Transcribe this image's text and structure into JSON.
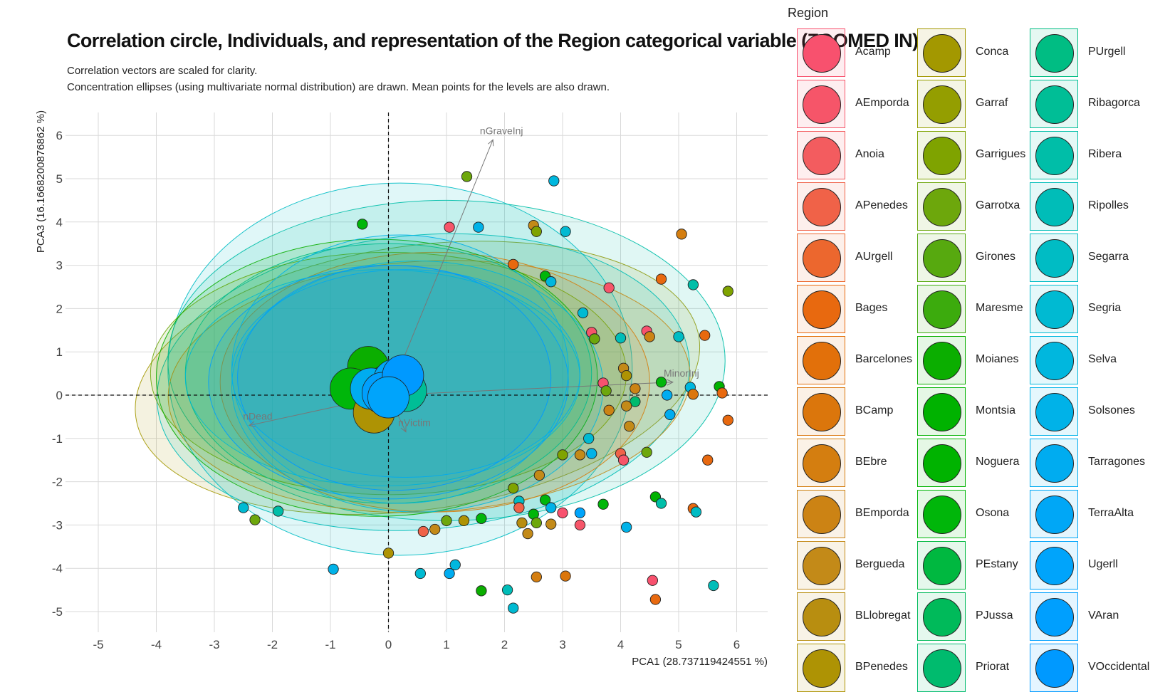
{
  "title": "Correlation circle, Individuals, and representation of the Region categorical variable (ZOOMED IN)",
  "subtitle_lines": [
    "Correlation vectors are scaled for clarity.",
    "Concentration ellipses (using multivariate normal distribution) are drawn. Mean points for the levels are also drawn."
  ],
  "chart_data": {
    "type": "scatter",
    "xlabel": "PCA1 (28.737119424551 %)",
    "ylabel": "PCA3 (16.1668200876862 %)",
    "xlim": [
      -5.5,
      6.5
    ],
    "ylim": [
      -5.6,
      6.5
    ],
    "xticks": [
      -5,
      -4,
      -3,
      -2,
      -1,
      0,
      1,
      2,
      3,
      4,
      5,
      6
    ],
    "yticks": [
      -5,
      -4,
      -3,
      -2,
      -1,
      0,
      1,
      2,
      3,
      4,
      5,
      6
    ],
    "grid": true,
    "reference_lines": {
      "x": 0,
      "y": 0,
      "style": "dashed"
    },
    "legend": {
      "title": "Region",
      "position": "right"
    },
    "regions": [
      {
        "name": "Acamp",
        "color": "#F8516E"
      },
      {
        "name": "AEmporda",
        "color": "#F65569"
      },
      {
        "name": "Anoia",
        "color": "#F35C5F"
      },
      {
        "name": "APenedes",
        "color": "#F06248"
      },
      {
        "name": "AUrgell",
        "color": "#EC672E"
      },
      {
        "name": "Bages",
        "color": "#E8690F"
      },
      {
        "name": "Barcelones",
        "color": "#E2700A"
      },
      {
        "name": "BCamp",
        "color": "#DB760C"
      },
      {
        "name": "BEbre",
        "color": "#D47E10"
      },
      {
        "name": "BEmporda",
        "color": "#CC8314"
      },
      {
        "name": "Bergueda",
        "color": "#C38A18"
      },
      {
        "name": "BLlobregat",
        "color": "#B88E10"
      },
      {
        "name": "BPenedes",
        "color": "#AE9304"
      },
      {
        "name": "Conca",
        "color": "#A39800"
      },
      {
        "name": "Garraf",
        "color": "#949E00"
      },
      {
        "name": "Garrigues",
        "color": "#7FA300"
      },
      {
        "name": "Garrotxa",
        "color": "#6DA70C"
      },
      {
        "name": "Girones",
        "color": "#57A90F"
      },
      {
        "name": "Maresme",
        "color": "#3CAB0D"
      },
      {
        "name": "Moianes",
        "color": "#0BAE00"
      },
      {
        "name": "Montsia",
        "color": "#00B200"
      },
      {
        "name": "Noguera",
        "color": "#00B300"
      },
      {
        "name": "Osona",
        "color": "#00B60A"
      },
      {
        "name": "PEstany",
        "color": "#00B840"
      },
      {
        "name": "PJussa",
        "color": "#00BA5A"
      },
      {
        "name": "Priorat",
        "color": "#00BB6E"
      },
      {
        "name": "PUrgell",
        "color": "#00BD83"
      },
      {
        "name": "Ribagorca",
        "color": "#00BE96"
      },
      {
        "name": "Ribera",
        "color": "#00BEA8"
      },
      {
        "name": "Ripolles",
        "color": "#00BDB8"
      },
      {
        "name": "Segarra",
        "color": "#00BCC4"
      },
      {
        "name": "Segria",
        "color": "#00BAD2"
      },
      {
        "name": "Selva",
        "color": "#00B7DE"
      },
      {
        "name": "Solsones",
        "color": "#00B2E8"
      },
      {
        "name": "Tarragones",
        "color": "#00ACF0"
      },
      {
        "name": "TerraAlta",
        "color": "#00A7F6"
      },
      {
        "name": "Ugerll",
        "color": "#00A4FB"
      },
      {
        "name": "VAran",
        "color": "#009FFE"
      },
      {
        "name": "VOccidental",
        "color": "#0099FF"
      }
    ],
    "vectors": [
      {
        "label": "nGraveInj",
        "x": 1.8,
        "y": 5.9
      },
      {
        "label": "MinorInj",
        "x": 4.9,
        "y": 0.3
      },
      {
        "label": "nDead",
        "x": -2.4,
        "y": -0.7
      },
      {
        "label": "nVictim",
        "x": 0.3,
        "y": -0.85
      }
    ],
    "points": [
      {
        "x": 1.35,
        "y": 5.05,
        "region": "Garrotxa"
      },
      {
        "x": 2.85,
        "y": 4.95,
        "region": "Selva"
      },
      {
        "x": -0.45,
        "y": 3.95,
        "region": "Osona"
      },
      {
        "x": 1.05,
        "y": 3.88,
        "region": "AEmporda"
      },
      {
        "x": 1.55,
        "y": 3.88,
        "region": "Solsones"
      },
      {
        "x": 2.5,
        "y": 3.92,
        "region": "Bergueda"
      },
      {
        "x": 2.55,
        "y": 3.78,
        "region": "Garrigues"
      },
      {
        "x": 3.05,
        "y": 3.78,
        "region": "Segria"
      },
      {
        "x": 5.05,
        "y": 3.72,
        "region": "BEbre"
      },
      {
        "x": 2.15,
        "y": 3.02,
        "region": "Bages"
      },
      {
        "x": 4.7,
        "y": 2.68,
        "region": "Bages"
      },
      {
        "x": 2.7,
        "y": 2.75,
        "region": "Osona"
      },
      {
        "x": 2.8,
        "y": 2.62,
        "region": "Selva"
      },
      {
        "x": 3.8,
        "y": 2.48,
        "region": "AEmporda"
      },
      {
        "x": 5.25,
        "y": 2.55,
        "region": "Ribera"
      },
      {
        "x": 5.85,
        "y": 2.4,
        "region": "Garrigues"
      },
      {
        "x": 3.35,
        "y": 1.9,
        "region": "Segria"
      },
      {
        "x": 3.5,
        "y": 1.45,
        "region": "AEmporda"
      },
      {
        "x": 3.55,
        "y": 1.3,
        "region": "Garrotxa"
      },
      {
        "x": 4.45,
        "y": 1.48,
        "region": "Acamp"
      },
      {
        "x": 4.5,
        "y": 1.35,
        "region": "BEmporda"
      },
      {
        "x": 5.0,
        "y": 1.35,
        "region": "Segarra"
      },
      {
        "x": 5.45,
        "y": 1.38,
        "region": "Bages"
      },
      {
        "x": 4.0,
        "y": 1.32,
        "region": "Ripolles"
      },
      {
        "x": 4.05,
        "y": 0.62,
        "region": "Bergueda"
      },
      {
        "x": 4.1,
        "y": 0.45,
        "region": "BPenedes"
      },
      {
        "x": 4.25,
        "y": 0.15,
        "region": "BEmporda"
      },
      {
        "x": 4.7,
        "y": 0.3,
        "region": "Osona"
      },
      {
        "x": 4.8,
        "y": 0.0,
        "region": "Tarragones"
      },
      {
        "x": 5.2,
        "y": 0.18,
        "region": "Selva"
      },
      {
        "x": 5.25,
        "y": 0.02,
        "region": "BCamp"
      },
      {
        "x": 5.7,
        "y": 0.2,
        "region": "Montsia"
      },
      {
        "x": 5.75,
        "y": 0.05,
        "region": "Bages"
      },
      {
        "x": 3.7,
        "y": 0.28,
        "region": "Acamp"
      },
      {
        "x": 3.75,
        "y": 0.1,
        "region": "Garrotxa"
      },
      {
        "x": 4.25,
        "y": -0.15,
        "region": "Priorat"
      },
      {
        "x": 4.1,
        "y": -0.25,
        "region": "Bergueda"
      },
      {
        "x": 3.8,
        "y": -0.35,
        "region": "BEmporda"
      },
      {
        "x": 4.85,
        "y": -0.45,
        "region": "Tarragones"
      },
      {
        "x": 5.85,
        "y": -0.58,
        "region": "Bages"
      },
      {
        "x": 4.15,
        "y": -0.72,
        "region": "Bergueda"
      },
      {
        "x": 3.45,
        "y": -1.0,
        "region": "Segria"
      },
      {
        "x": 3.5,
        "y": -1.35,
        "region": "Solsones"
      },
      {
        "x": 3.3,
        "y": -1.38,
        "region": "Bergueda"
      },
      {
        "x": 3.0,
        "y": -1.38,
        "region": "Garrigues"
      },
      {
        "x": 4.0,
        "y": -1.35,
        "region": "APenedes"
      },
      {
        "x": 4.05,
        "y": -1.5,
        "region": "AEmporda"
      },
      {
        "x": 4.45,
        "y": -1.32,
        "region": "Garrotxa"
      },
      {
        "x": 5.5,
        "y": -1.5,
        "region": "Bages"
      },
      {
        "x": 2.6,
        "y": -1.85,
        "region": "Bergueda"
      },
      {
        "x": 2.15,
        "y": -2.15,
        "region": "Garrigues"
      },
      {
        "x": 2.25,
        "y": -2.45,
        "region": "Segarra"
      },
      {
        "x": 2.25,
        "y": -2.6,
        "region": "APenedes"
      },
      {
        "x": 2.7,
        "y": -2.42,
        "region": "Osona"
      },
      {
        "x": 2.8,
        "y": -2.6,
        "region": "Solsones"
      },
      {
        "x": 3.0,
        "y": -2.72,
        "region": "Acamp"
      },
      {
        "x": 3.3,
        "y": -2.72,
        "region": "Ugerll"
      },
      {
        "x": 3.7,
        "y": -2.52,
        "region": "Osona"
      },
      {
        "x": 4.6,
        "y": -2.35,
        "region": "Montsia"
      },
      {
        "x": 4.7,
        "y": -2.5,
        "region": "Ribera"
      },
      {
        "x": 5.25,
        "y": -2.62,
        "region": "Bages"
      },
      {
        "x": 5.3,
        "y": -2.7,
        "region": "Segarra"
      },
      {
        "x": 2.5,
        "y": -2.75,
        "region": "Osona"
      },
      {
        "x": 2.55,
        "y": -2.95,
        "region": "Garrotxa"
      },
      {
        "x": 2.3,
        "y": -2.95,
        "region": "BLlobregat"
      },
      {
        "x": 2.4,
        "y": -3.2,
        "region": "Bergueda"
      },
      {
        "x": 2.8,
        "y": -2.98,
        "region": "Bergueda"
      },
      {
        "x": 3.3,
        "y": -3.0,
        "region": "AEmporda"
      },
      {
        "x": 4.1,
        "y": -3.05,
        "region": "Solsones"
      },
      {
        "x": 1.6,
        "y": -2.85,
        "region": "Osona"
      },
      {
        "x": 1.3,
        "y": -2.9,
        "region": "BPenedes"
      },
      {
        "x": 0.6,
        "y": -3.15,
        "region": "APenedes"
      },
      {
        "x": 0.8,
        "y": -3.1,
        "region": "Bergueda"
      },
      {
        "x": 1.0,
        "y": -2.9,
        "region": "Garrotxa"
      },
      {
        "x": -2.5,
        "y": -2.6,
        "region": "Segria"
      },
      {
        "x": -2.3,
        "y": -2.88,
        "region": "Garrotxa"
      },
      {
        "x": -1.9,
        "y": -2.68,
        "region": "Ribera"
      },
      {
        "x": -0.95,
        "y": -4.02,
        "region": "Solsones"
      },
      {
        "x": 0.0,
        "y": -3.65,
        "region": "BPenedes"
      },
      {
        "x": 0.55,
        "y": -4.12,
        "region": "Segria"
      },
      {
        "x": 1.05,
        "y": -4.12,
        "region": "Tarragones"
      },
      {
        "x": 1.15,
        "y": -3.92,
        "region": "Selva"
      },
      {
        "x": 2.55,
        "y": -4.2,
        "region": "BEbre"
      },
      {
        "x": 3.05,
        "y": -4.18,
        "region": "BCamp"
      },
      {
        "x": 1.6,
        "y": -4.52,
        "region": "Moianes"
      },
      {
        "x": 2.05,
        "y": -4.5,
        "region": "Ripolles"
      },
      {
        "x": 2.15,
        "y": -4.92,
        "region": "Segria"
      },
      {
        "x": 4.55,
        "y": -4.28,
        "region": "Acamp"
      },
      {
        "x": 4.6,
        "y": -4.72,
        "region": "Bages"
      },
      {
        "x": 5.6,
        "y": -4.4,
        "region": "Ripolles"
      }
    ],
    "group_means": [
      {
        "x": -0.35,
        "y": 0.65,
        "region": "Moianes"
      },
      {
        "x": -0.65,
        "y": 0.15,
        "region": "Osona"
      },
      {
        "x": -0.25,
        "y": -0.4,
        "region": "BPenedes"
      },
      {
        "x": -0.05,
        "y": 0.2,
        "region": "PJussa"
      },
      {
        "x": 0.3,
        "y": 0.1,
        "region": "Ribagorca"
      },
      {
        "x": -0.3,
        "y": 0.15,
        "region": "Tarragones"
      },
      {
        "x": 0.1,
        "y": 0.35,
        "region": "TerraAlta"
      },
      {
        "x": -0.1,
        "y": 0.05,
        "region": "VAran"
      },
      {
        "x": 0.25,
        "y": 0.45,
        "region": "VOccidental"
      },
      {
        "x": 0.0,
        "y": -0.05,
        "region": "Ugerll"
      }
    ],
    "ellipses": [
      {
        "region": "Conca",
        "cx": 0.5,
        "cy": 0.4,
        "rx": 4.9,
        "ry": 3.05,
        "rot": -8
      },
      {
        "region": "Ripolles",
        "cx": 0.6,
        "cy": 0.3,
        "rx": 4.6,
        "ry": 3.4,
        "rot": -5
      },
      {
        "region": "Segarra",
        "cx": 0.2,
        "cy": 0.6,
        "rx": 4.0,
        "ry": 4.3,
        "rot": 0
      },
      {
        "region": "Ribera",
        "cx": 1.0,
        "cy": 0.8,
        "rx": 4.8,
        "ry": 3.7,
        "rot": 0
      },
      {
        "region": "Bergueda",
        "cx": 0.7,
        "cy": 0.2,
        "rx": 4.5,
        "ry": 2.9,
        "rot": -3
      },
      {
        "region": "Garrotxa",
        "cx": 0.0,
        "cy": 0.5,
        "rx": 4.1,
        "ry": 2.8,
        "rot": 0
      },
      {
        "region": "BEbre",
        "cx": 0.8,
        "cy": 0.3,
        "rx": 3.7,
        "ry": 3.0,
        "rot": 0
      },
      {
        "region": "Moianes",
        "cx": -0.2,
        "cy": 0.4,
        "rx": 3.8,
        "ry": 3.2,
        "rot": 0
      },
      {
        "region": "PUrgell",
        "cx": 0.0,
        "cy": 0.5,
        "rx": 3.5,
        "ry": 3.0,
        "rot": 0
      },
      {
        "region": "Selva",
        "cx": 0.5,
        "cy": 0.2,
        "rx": 3.2,
        "ry": 2.9,
        "rot": 0
      },
      {
        "region": "Segria",
        "cx": -0.1,
        "cy": 0.4,
        "rx": 3.4,
        "ry": 2.5,
        "rot": 0
      },
      {
        "region": "Tarragones",
        "cx": 0.3,
        "cy": 0.5,
        "rx": 3.0,
        "ry": 2.4,
        "rot": 0
      },
      {
        "region": "VAran",
        "cx": 0.0,
        "cy": 0.3,
        "rx": 3.1,
        "ry": 2.7,
        "rot": 0
      },
      {
        "region": "Solsones",
        "cx": 0.2,
        "cy": 0.6,
        "rx": 2.9,
        "ry": 3.1,
        "rot": 0
      },
      {
        "region": "VOccidental",
        "cx": 0.1,
        "cy": 0.4,
        "rx": 2.7,
        "ry": 2.6,
        "rot": 0
      }
    ]
  }
}
